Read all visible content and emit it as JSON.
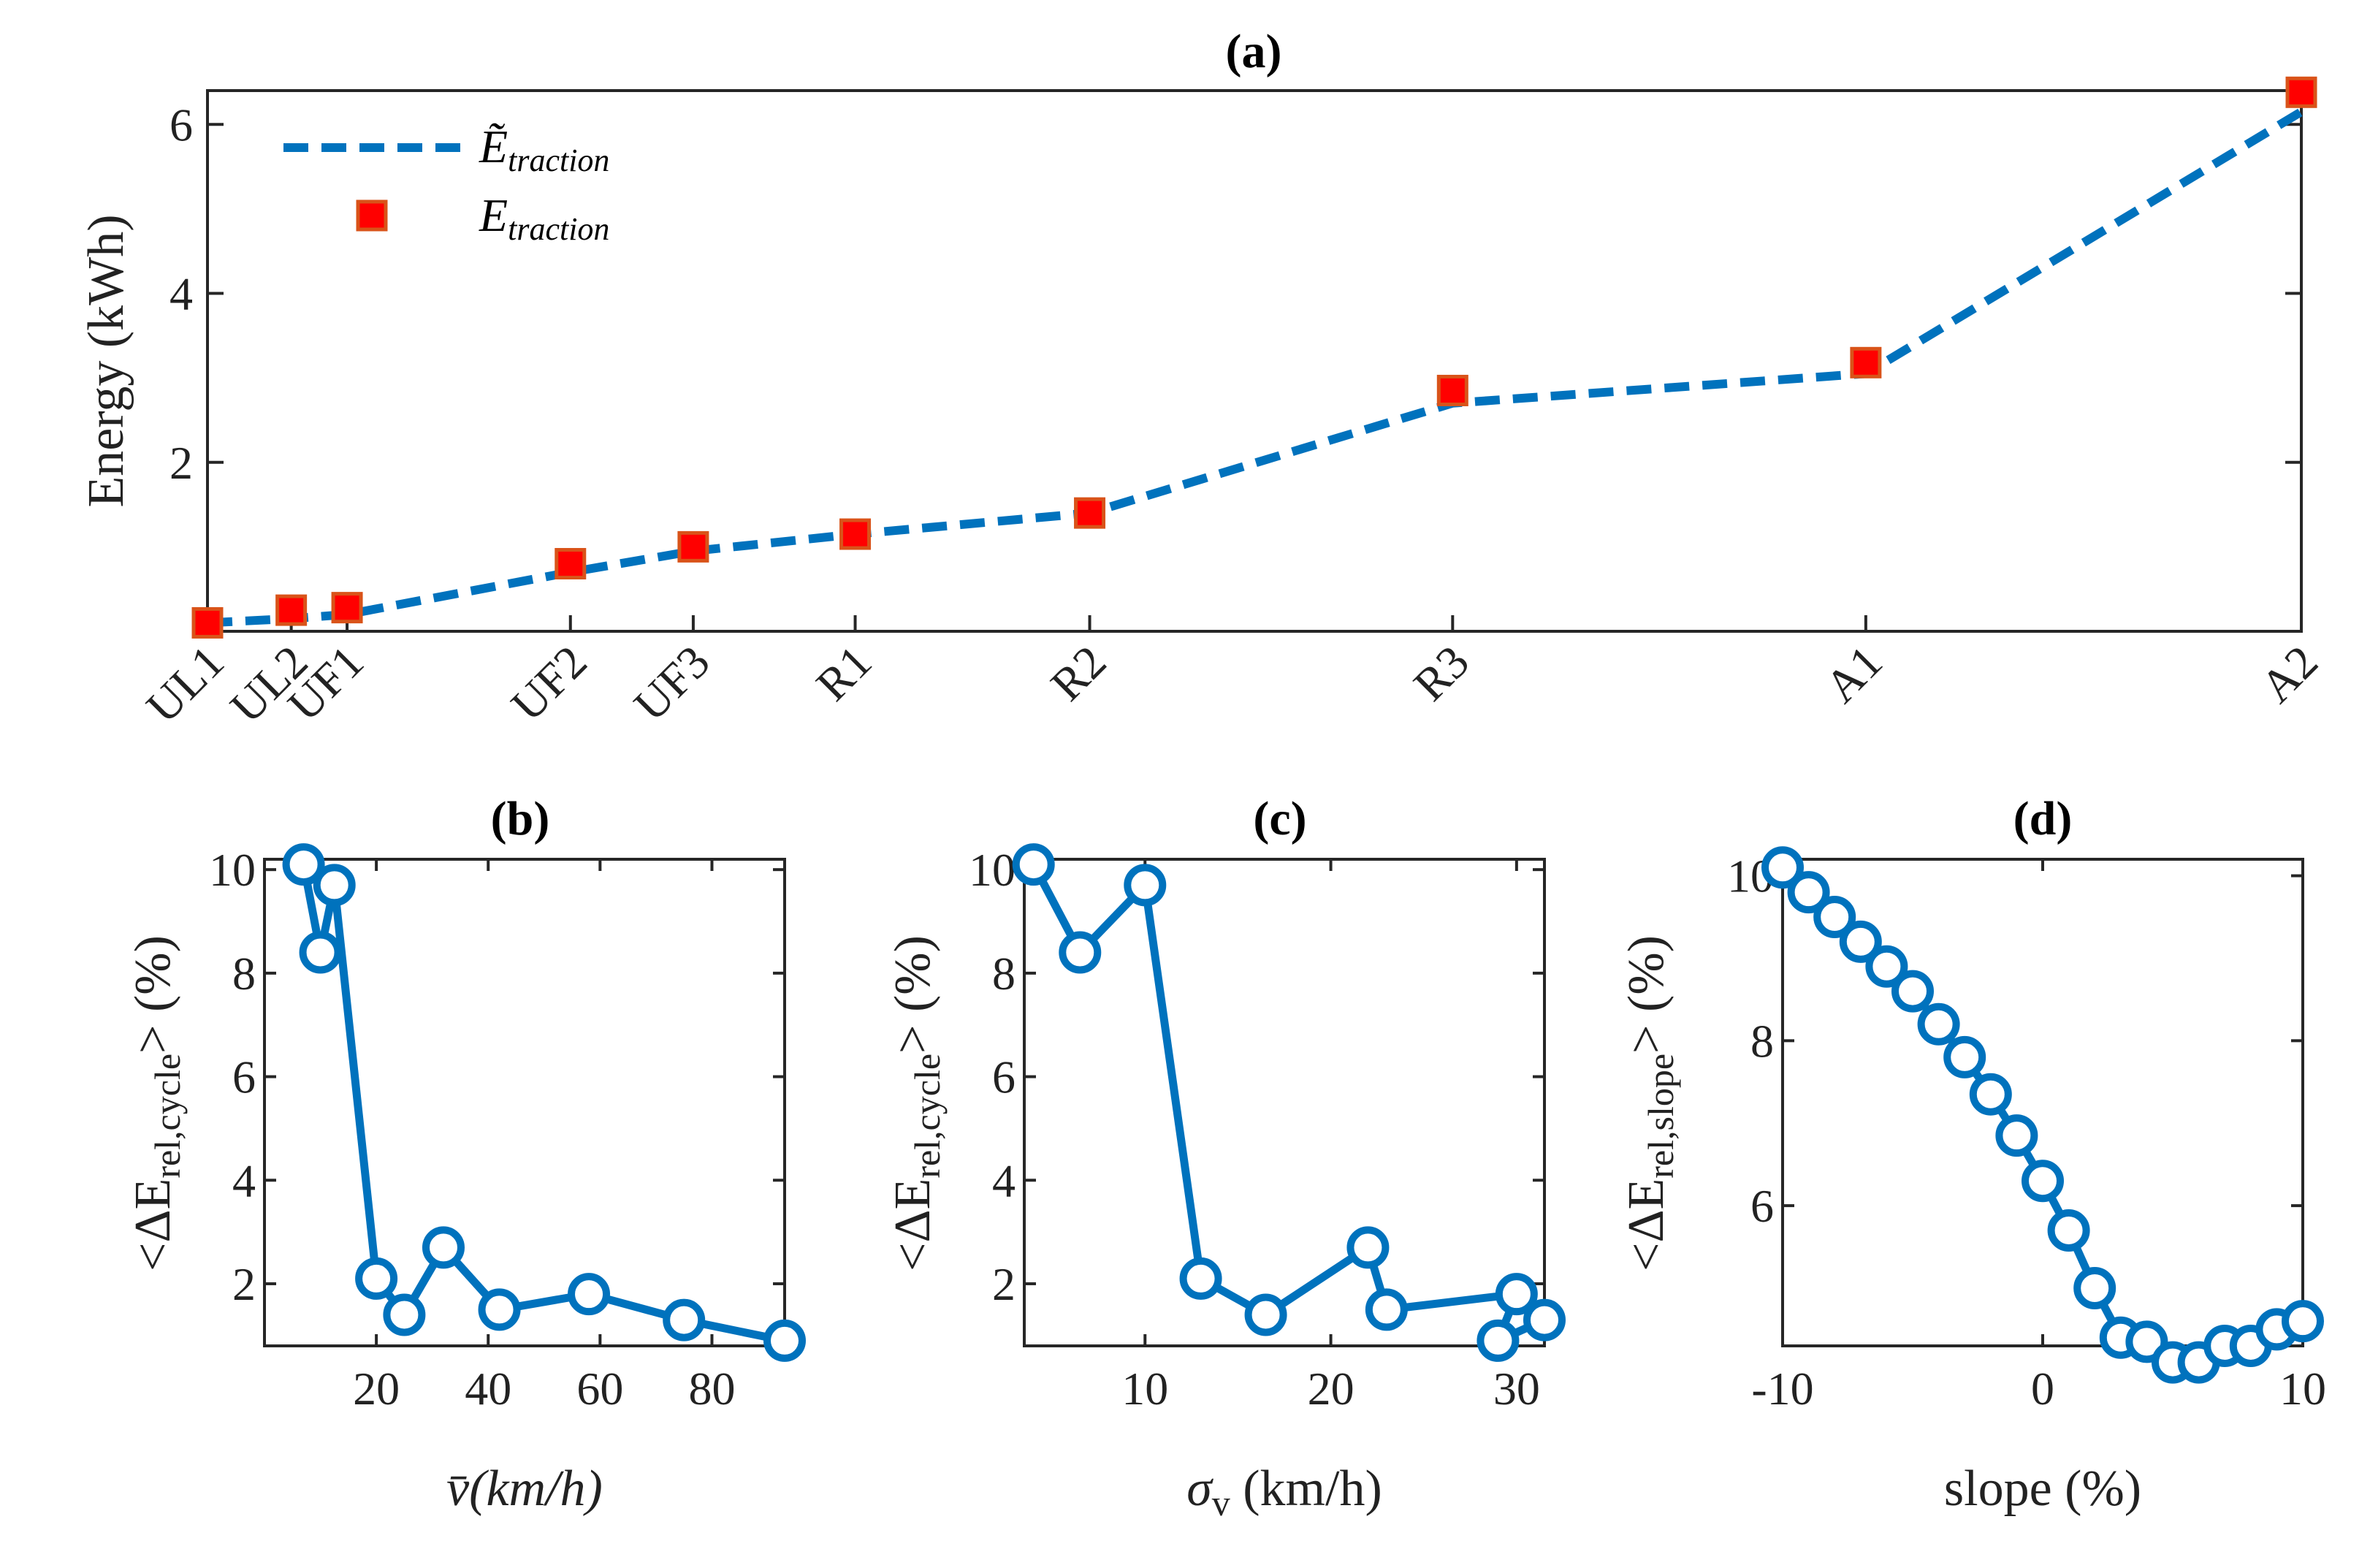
{
  "colors": {
    "line": "#0072BD",
    "marker_fill": "#FF0000",
    "marker_edge": "#D95319",
    "axis": "#262626"
  },
  "chart_data": [
    {
      "id": "a",
      "type": "line",
      "title": "(a)",
      "ylabel": "Energy (kWh)",
      "ylim": [
        0,
        6.4
      ],
      "yticks": [
        2,
        4,
        6
      ],
      "categories": [
        "UL1",
        "UL2",
        "UF1",
        "UF2",
        "UF3",
        "R1",
        "R2",
        "R3",
        "A1",
        "A2"
      ],
      "x": [
        0,
        0.15,
        0.25,
        0.65,
        0.87,
        1.16,
        1.58,
        2.23,
        2.97,
        3.75
      ],
      "series": [
        {
          "name": "Ẽ",
          "subscript": "traction",
          "style": "dashed-line",
          "values": [
            0.1,
            0.15,
            0.2,
            0.7,
            0.95,
            1.15,
            1.4,
            2.7,
            3.05,
            6.15
          ]
        },
        {
          "name": "E",
          "subscript": "traction",
          "style": "square-marker",
          "values": [
            0.1,
            0.25,
            0.28,
            0.8,
            1.0,
            1.15,
            1.4,
            2.85,
            3.18,
            6.38
          ]
        }
      ],
      "legend_position": "top-left"
    },
    {
      "id": "b",
      "type": "line",
      "title": "(b)",
      "xlabel": "v̄(km/h)",
      "ylabel_prefix": "<ΔE",
      "ylabel_sub": "rel,cycle",
      "ylabel_suffix": "> (%)",
      "xlim": [
        0,
        93
      ],
      "ylim": [
        0.8,
        10.2
      ],
      "xticks": [
        20,
        40,
        60,
        80
      ],
      "yticks": [
        2,
        4,
        6,
        8,
        10
      ],
      "series": [
        {
          "name": "b",
          "x": [
            7,
            10,
            12.5,
            20,
            25,
            32,
            42,
            58,
            75,
            93
          ],
          "values": [
            10.1,
            8.4,
            9.7,
            2.1,
            1.4,
            2.7,
            1.5,
            1.8,
            1.3,
            0.9
          ]
        }
      ]
    },
    {
      "id": "c",
      "type": "line",
      "title": "(c)",
      "xlabel_main": "σ",
      "xlabel_sub": "v",
      "xlabel_suffix": " (km/h)",
      "ylabel_prefix": "<ΔE",
      "ylabel_sub": "rel,cycle",
      "ylabel_suffix": "> (%)",
      "xlim": [
        3.5,
        31.5
      ],
      "ylim": [
        0.8,
        10.2
      ],
      "xticks": [
        10,
        20,
        30
      ],
      "yticks": [
        2,
        4,
        6,
        8,
        10
      ],
      "series": [
        {
          "name": "c",
          "x": [
            4,
            6.5,
            10,
            13,
            16.5,
            22,
            23,
            30,
            29,
            31.5
          ],
          "values": [
            10.1,
            8.4,
            9.7,
            2.1,
            1.4,
            2.7,
            1.5,
            1.8,
            0.9,
            1.3
          ]
        }
      ]
    },
    {
      "id": "d",
      "type": "line",
      "title": "(d)",
      "xlabel": "slope (%)",
      "ylabel_prefix": "<ΔE",
      "ylabel_sub": "rel,slope",
      "ylabel_suffix": "> (%)",
      "xlim": [
        -10,
        10
      ],
      "ylim": [
        4.3,
        10.2
      ],
      "xticks": [
        -10,
        0,
        10
      ],
      "yticks": [
        6,
        8,
        10
      ],
      "series": [
        {
          "name": "d",
          "x": [
            -10,
            -9,
            -8,
            -7,
            -6,
            -5,
            -4,
            -3,
            -2,
            -1,
            0,
            1,
            2,
            3,
            4,
            5,
            6,
            7,
            8,
            9,
            10
          ],
          "values": [
            10.1,
            9.8,
            9.5,
            9.2,
            8.9,
            8.6,
            8.2,
            7.8,
            7.35,
            6.85,
            6.3,
            5.7,
            5.0,
            4.4,
            4.35,
            4.1,
            4.1,
            4.3,
            4.3,
            4.5,
            4.6
          ]
        }
      ]
    }
  ]
}
